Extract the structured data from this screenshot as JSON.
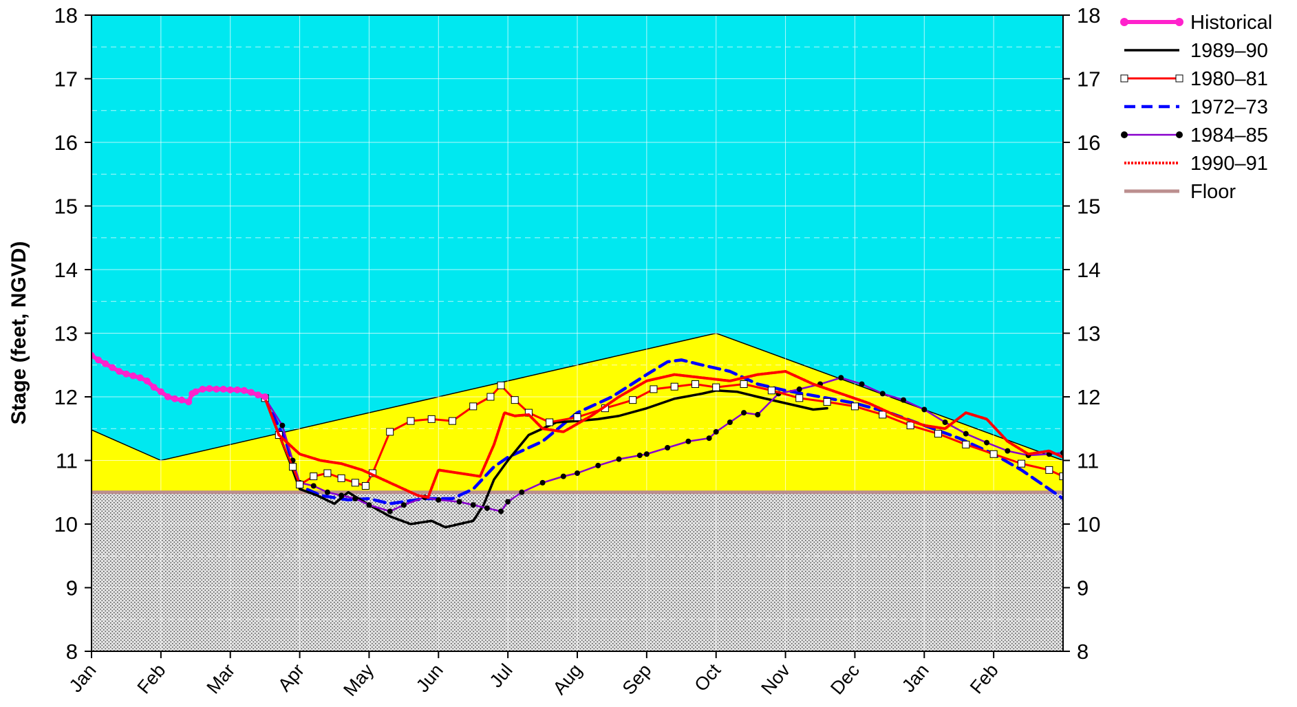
{
  "chart_data": {
    "type": "line",
    "title": "",
    "xlabel": "",
    "ylabel": "Stage (feet, NGVD)",
    "ylim": [
      8,
      18
    ],
    "xlim": [
      0,
      14
    ],
    "yticks": [
      8,
      9,
      10,
      11,
      12,
      13,
      14,
      15,
      16,
      17,
      18
    ],
    "x_tick_labels": [
      "Jan",
      "Feb",
      "Mar",
      "Apr",
      "May",
      "Jun",
      "Jul",
      "Aug",
      "Sep",
      "Oct",
      "Nov",
      "Dec",
      "Jan",
      "Feb"
    ],
    "x_unit_note": "x values are months from the first Jan tick",
    "grid": true,
    "legend_position": "right",
    "colors": {
      "upper_zone": "#00e8f0",
      "middle_zone": "#ffff00",
      "lower_zone": "#d8d8d8",
      "historical": "#ff22cc",
      "y1989": "#000000",
      "y1980": "#ff0000",
      "y1972": "#0000ff",
      "y1984_line": "#8800cc",
      "y1984_marker": "#000000",
      "y1990": "#ff0000",
      "floor": "#bc8f8f"
    },
    "zones": {
      "floor_level": 10.5,
      "schedule_line": [
        [
          0,
          11.48
        ],
        [
          1,
          11.0
        ],
        [
          9,
          13.0
        ],
        [
          14,
          11.0
        ]
      ]
    },
    "series": [
      {
        "name": "Historical",
        "x": [
          0,
          0.1,
          0.2,
          0.3,
          0.4,
          0.5,
          0.6,
          0.7,
          0.8,
          0.9,
          1.0,
          1.1,
          1.2,
          1.3,
          1.4,
          1.45,
          1.5,
          1.6,
          1.7,
          1.8,
          1.9,
          2.0,
          2.1,
          2.2,
          2.3,
          2.4,
          2.5
        ],
        "y": [
          12.65,
          12.58,
          12.52,
          12.46,
          12.4,
          12.36,
          12.33,
          12.3,
          12.25,
          12.15,
          12.08,
          12.0,
          11.97,
          11.95,
          11.92,
          12.05,
          12.08,
          12.12,
          12.13,
          12.12,
          12.12,
          12.11,
          12.11,
          12.1,
          12.07,
          12.03,
          12.0
        ]
      },
      {
        "name": "1989–90",
        "x": [
          2.5,
          2.65,
          2.85,
          3.0,
          3.25,
          3.5,
          3.7,
          4.0,
          4.3,
          4.6,
          4.9,
          5.1,
          5.3,
          5.5,
          5.65,
          5.8,
          6.0,
          6.3,
          6.7,
          7.0,
          7.3,
          7.6,
          8.0,
          8.4,
          8.8,
          9.0,
          9.3,
          9.6,
          10.0,
          10.4,
          10.6
        ],
        "y": [
          11.98,
          11.55,
          11.0,
          10.55,
          10.45,
          10.32,
          10.5,
          10.3,
          10.12,
          10.0,
          10.05,
          9.95,
          10.0,
          10.05,
          10.3,
          10.7,
          11.0,
          11.4,
          11.6,
          11.62,
          11.65,
          11.7,
          11.82,
          11.97,
          12.05,
          12.1,
          12.08,
          12.0,
          11.9,
          11.8,
          11.82
        ]
      },
      {
        "name": "1980–81",
        "x": [
          2.5,
          2.7,
          2.9,
          3.0,
          3.2,
          3.4,
          3.6,
          3.8,
          3.95,
          4.05,
          4.3,
          4.6,
          4.9,
          5.2,
          5.5,
          5.75,
          5.9,
          6.1,
          6.3,
          6.6,
          7.0,
          7.4,
          7.8,
          8.1,
          8.4,
          8.7,
          9.0,
          9.4,
          9.8,
          10.2,
          10.6,
          11.0,
          11.4,
          11.8,
          12.2,
          12.6,
          13.0,
          13.4,
          13.8,
          14.0
        ],
        "y": [
          11.98,
          11.4,
          10.9,
          10.62,
          10.75,
          10.8,
          10.72,
          10.65,
          10.6,
          10.8,
          11.45,
          11.62,
          11.65,
          11.62,
          11.85,
          12.0,
          12.18,
          11.95,
          11.75,
          11.6,
          11.68,
          11.82,
          11.95,
          12.12,
          12.16,
          12.2,
          12.15,
          12.2,
          12.1,
          11.98,
          11.92,
          11.85,
          11.72,
          11.55,
          11.42,
          11.25,
          11.1,
          10.95,
          10.85,
          10.75
        ]
      },
      {
        "name": "1972–73",
        "x": [
          2.5,
          2.8,
          3.0,
          3.3,
          3.7,
          4.0,
          4.3,
          4.8,
          5.2,
          5.5,
          5.8,
          6.0,
          6.5,
          7.0,
          7.5,
          8.0,
          8.3,
          8.5,
          8.8,
          9.2,
          9.6,
          10.0,
          10.5,
          11.0,
          11.5,
          12.0,
          12.5,
          13.0,
          13.4,
          13.8,
          14.0
        ],
        "y": [
          11.98,
          11.3,
          10.6,
          10.45,
          10.38,
          10.4,
          10.32,
          10.4,
          10.4,
          10.55,
          10.9,
          11.05,
          11.3,
          11.75,
          12.0,
          12.35,
          12.55,
          12.58,
          12.5,
          12.4,
          12.2,
          12.1,
          12.0,
          11.9,
          11.75,
          11.55,
          11.35,
          11.1,
          10.85,
          10.55,
          10.4
        ]
      },
      {
        "name": "1984–85",
        "x": [
          2.5,
          2.75,
          2.9,
          3.0,
          3.2,
          3.4,
          3.6,
          3.8,
          4.0,
          4.3,
          4.5,
          4.8,
          5.0,
          5.3,
          5.5,
          5.7,
          5.9,
          6.0,
          6.2,
          6.5,
          6.8,
          7.0,
          7.3,
          7.6,
          7.9,
          8.0,
          8.3,
          8.6,
          8.9,
          9.0,
          9.2,
          9.4,
          9.6,
          9.9,
          10.2,
          10.5,
          10.8,
          11.1,
          11.4,
          11.7,
          12.0,
          12.3,
          12.6,
          12.9,
          13.2,
          13.5,
          13.8,
          14.0
        ],
        "y": [
          11.98,
          11.55,
          11.0,
          10.65,
          10.6,
          10.5,
          10.45,
          10.4,
          10.3,
          10.2,
          10.3,
          10.42,
          10.38,
          10.35,
          10.3,
          10.25,
          10.2,
          10.35,
          10.5,
          10.65,
          10.75,
          10.8,
          10.92,
          11.02,
          11.08,
          11.1,
          11.2,
          11.3,
          11.35,
          11.45,
          11.6,
          11.75,
          11.72,
          12.05,
          12.12,
          12.2,
          12.3,
          12.2,
          12.05,
          11.95,
          11.8,
          11.6,
          11.42,
          11.28,
          11.15,
          11.08,
          11.1,
          11.12
        ]
      },
      {
        "name": "1990–91",
        "x": [
          2.5,
          2.7,
          2.9,
          3.0,
          3.3,
          3.6,
          3.9,
          4.2,
          4.5,
          4.7,
          4.85,
          5.0,
          5.3,
          5.6,
          5.8,
          5.95,
          6.1,
          6.3,
          6.5,
          6.8,
          7.2,
          7.6,
          8.0,
          8.4,
          8.8,
          9.2,
          9.6,
          10.0,
          10.4,
          10.8,
          11.2,
          11.6,
          12.0,
          12.3,
          12.6,
          12.9,
          13.2,
          13.5,
          13.8,
          14.0
        ],
        "y": [
          11.98,
          11.4,
          11.2,
          11.1,
          11.0,
          10.95,
          10.85,
          10.7,
          10.55,
          10.45,
          10.42,
          10.85,
          10.8,
          10.75,
          11.25,
          11.75,
          11.7,
          11.72,
          11.5,
          11.45,
          11.7,
          12.0,
          12.25,
          12.35,
          12.3,
          12.25,
          12.35,
          12.4,
          12.2,
          12.05,
          11.9,
          11.7,
          11.55,
          11.5,
          11.75,
          11.65,
          11.3,
          11.1,
          11.15,
          11.05
        ]
      },
      {
        "name": "Floor",
        "x": [
          0,
          14
        ],
        "y": [
          10.5,
          10.5
        ]
      }
    ]
  }
}
